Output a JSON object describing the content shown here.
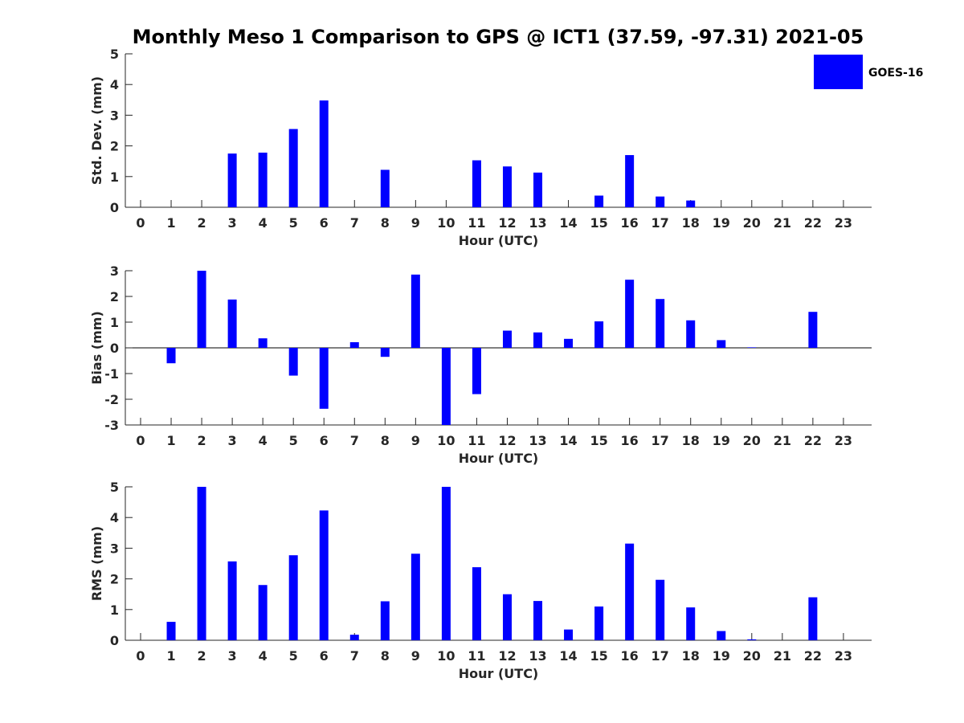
{
  "figure": {
    "title": "Monthly Meso 1 Comparison to GPS @ ICT1 (37.59, -97.31) 2021-05"
  },
  "legend": {
    "label": "GOES-16",
    "color": "#0000ff",
    "placement": "top-right"
  },
  "chart_data": [
    {
      "type": "bar",
      "xlabel": "Hour (UTC)",
      "ylabel": "Std. Dev. (mm)",
      "categories": [
        "0",
        "1",
        "2",
        "3",
        "4",
        "5",
        "6",
        "7",
        "8",
        "9",
        "10",
        "11",
        "12",
        "13",
        "14",
        "15",
        "16",
        "17",
        "18",
        "19",
        "20",
        "21",
        "22",
        "23"
      ],
      "series": [
        {
          "name": "GOES-16",
          "color": "#0000ff",
          "values": [
            null,
            null,
            null,
            1.75,
            1.78,
            2.55,
            3.48,
            null,
            1.22,
            null,
            null,
            1.53,
            1.33,
            1.13,
            null,
            0.38,
            1.7,
            0.35,
            0.22,
            null,
            null,
            null,
            null,
            null
          ]
        }
      ],
      "ylim": [
        0,
        5
      ],
      "yticks": [
        0,
        1,
        2,
        3,
        4,
        5
      ],
      "grid": false
    },
    {
      "type": "bar",
      "xlabel": "Hour (UTC)",
      "ylabel": "Bias (mm)",
      "categories": [
        "0",
        "1",
        "2",
        "3",
        "4",
        "5",
        "6",
        "7",
        "8",
        "9",
        "10",
        "11",
        "12",
        "13",
        "14",
        "15",
        "16",
        "17",
        "18",
        "19",
        "20",
        "21",
        "22",
        "23"
      ],
      "series": [
        {
          "name": "GOES-16",
          "color": "#0000ff",
          "values": [
            null,
            -0.6,
            3.0,
            1.88,
            0.37,
            -1.08,
            -2.37,
            0.22,
            -0.35,
            2.85,
            -3.0,
            -1.8,
            0.67,
            0.6,
            0.35,
            1.03,
            2.65,
            1.9,
            1.07,
            0.3,
            0.02,
            null,
            1.4,
            null
          ]
        }
      ],
      "ylim": [
        -3,
        3
      ],
      "yticks": [
        -3,
        -2,
        -1,
        0,
        1,
        2,
        3
      ],
      "zero_line": true,
      "grid": false
    },
    {
      "type": "bar",
      "xlabel": "Hour (UTC)",
      "ylabel": "RMS (mm)",
      "categories": [
        "0",
        "1",
        "2",
        "3",
        "4",
        "5",
        "6",
        "7",
        "8",
        "9",
        "10",
        "11",
        "12",
        "13",
        "14",
        "15",
        "16",
        "17",
        "18",
        "19",
        "20",
        "21",
        "22",
        "23"
      ],
      "series": [
        {
          "name": "GOES-16",
          "color": "#0000ff",
          "values": [
            null,
            0.6,
            5.0,
            2.57,
            1.8,
            2.77,
            4.23,
            0.18,
            1.27,
            2.82,
            5.0,
            2.38,
            1.5,
            1.28,
            0.35,
            1.1,
            3.15,
            1.97,
            1.07,
            0.3,
            0.03,
            null,
            1.4,
            null
          ]
        }
      ],
      "ylim": [
        0,
        5
      ],
      "yticks": [
        0,
        1,
        2,
        3,
        4,
        5
      ],
      "grid": false
    }
  ]
}
